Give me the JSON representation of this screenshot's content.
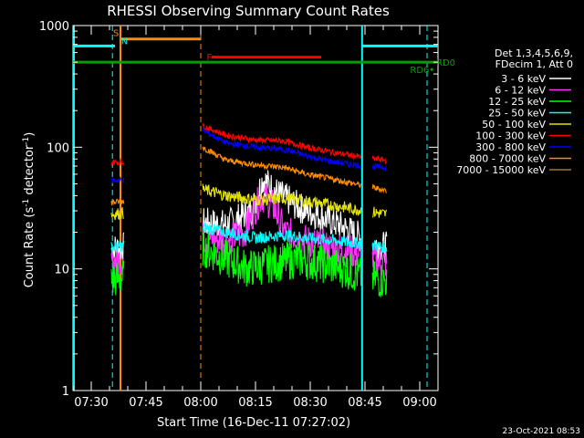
{
  "chart_data": {
    "type": "line",
    "title": "RHESSI Observing Summary Count Rates",
    "xlabel": "Start Time (16-Dec-11 07:27:02)",
    "ylabel": "Count Rate (s",
    "ylabel_sup": "-1",
    "ylabel_mid": " detector",
    "ylabel_end": ")",
    "footer": "23-Oct-2021 08:53",
    "legend_header": [
      "Det 1,3,4,5,6,9,",
      "FDecim 1, Att 0"
    ],
    "x_ticks": [
      "07:30",
      "07:45",
      "08:00",
      "08:15",
      "08:30",
      "08:45",
      "09:00"
    ],
    "x_tick_minutes": [
      3,
      18,
      33,
      48,
      63,
      78,
      93
    ],
    "xlim": [
      -2,
      98
    ],
    "y_ticks": [
      "1",
      "10",
      "100",
      "1000"
    ],
    "y_tick_values": [
      1,
      10,
      100,
      1000
    ],
    "ylim": [
      1,
      1000
    ],
    "yscale": "log",
    "gaps": [
      [
        12,
        33.5
      ],
      [
        77,
        80
      ]
    ],
    "series": [
      {
        "name": "3 - 6 keV",
        "color": "#ffffff",
        "points": [
          [
            8.5,
            14.5
          ],
          [
            12,
            15
          ],
          [
            33.5,
            24
          ],
          [
            40,
            23
          ],
          [
            47,
            30
          ],
          [
            50,
            55
          ],
          [
            54,
            42
          ],
          [
            60,
            32
          ],
          [
            66,
            27
          ],
          [
            72,
            22
          ],
          [
            77,
            18
          ],
          [
            80,
            16
          ],
          [
            84,
            15
          ]
        ]
      },
      {
        "name": "6 - 12 keV",
        "color": "#ff2fff",
        "points": [
          [
            8.5,
            11.5
          ],
          [
            12,
            12
          ],
          [
            33.5,
            18
          ],
          [
            40,
            17
          ],
          [
            45,
            20
          ],
          [
            48,
            32
          ],
          [
            50,
            40
          ],
          [
            53,
            32
          ],
          [
            56,
            20
          ],
          [
            62,
            17
          ],
          [
            68,
            15
          ],
          [
            74,
            14
          ],
          [
            80,
            12
          ],
          [
            84,
            11
          ]
        ]
      },
      {
        "name": "12 - 25 keV",
        "color": "#00ff00",
        "points": [
          [
            8.5,
            8
          ],
          [
            12,
            8.5
          ],
          [
            33.5,
            15
          ],
          [
            40,
            12
          ],
          [
            46,
            10
          ],
          [
            52,
            11
          ],
          [
            60,
            12
          ],
          [
            66,
            11
          ],
          [
            72,
            10
          ],
          [
            78,
            8.5
          ],
          [
            84,
            8
          ]
        ]
      },
      {
        "name": "25 - 50 keV",
        "color": "#00ffff",
        "points": [
          [
            8.5,
            15
          ],
          [
            12,
            15.5
          ],
          [
            33.5,
            22
          ],
          [
            40,
            20
          ],
          [
            48,
            18
          ],
          [
            56,
            19
          ],
          [
            62,
            18
          ],
          [
            70,
            17
          ],
          [
            78,
            16
          ],
          [
            84,
            15
          ]
        ]
      },
      {
        "name": "50 - 100 keV",
        "color": "#e6e600",
        "points": [
          [
            8.5,
            28
          ],
          [
            12,
            29
          ],
          [
            33.5,
            45
          ],
          [
            40,
            40
          ],
          [
            48,
            37
          ],
          [
            56,
            38
          ],
          [
            62,
            36
          ],
          [
            70,
            33
          ],
          [
            78,
            30
          ],
          [
            84,
            28
          ]
        ]
      },
      {
        "name": "100 - 300 keV",
        "color": "#ff0000",
        "points": [
          [
            8.5,
            75
          ],
          [
            12,
            76
          ],
          [
            33.5,
            150
          ],
          [
            40,
            125
          ],
          [
            48,
            115
          ],
          [
            56,
            112
          ],
          [
            62,
            100
          ],
          [
            70,
            90
          ],
          [
            78,
            82
          ],
          [
            84,
            78
          ]
        ]
      },
      {
        "name": "300 - 800 keV",
        "color": "#0000ff",
        "points": [
          [
            8.5,
            53
          ],
          [
            12,
            54
          ],
          [
            33.5,
            138
          ],
          [
            40,
            108
          ],
          [
            48,
            100
          ],
          [
            56,
            96
          ],
          [
            62,
            85
          ],
          [
            70,
            75
          ],
          [
            78,
            70
          ],
          [
            84,
            68
          ]
        ]
      },
      {
        "name": "800 - 7000 keV",
        "color": "#ff8c00",
        "points": [
          [
            8.5,
            35
          ],
          [
            12,
            36
          ],
          [
            33.5,
            100
          ],
          [
            40,
            78
          ],
          [
            48,
            72
          ],
          [
            56,
            68
          ],
          [
            62,
            60
          ],
          [
            70,
            54
          ],
          [
            78,
            48
          ],
          [
            84,
            44
          ]
        ]
      },
      {
        "name": "7000 - 15000 keV",
        "color": "#a0782a",
        "points": []
      }
    ],
    "annotations": {
      "saa_label": "S",
      "night_label": "N",
      "flare_label": "F",
      "rd0_label": "RD0",
      "rd6_label": "RD6",
      "colors": {
        "cyan": "#00ffff",
        "orange": "#ff8c00",
        "red": "#ff0000",
        "green": "#00a000",
        "dash_orange": "#ff8c00"
      }
    }
  }
}
